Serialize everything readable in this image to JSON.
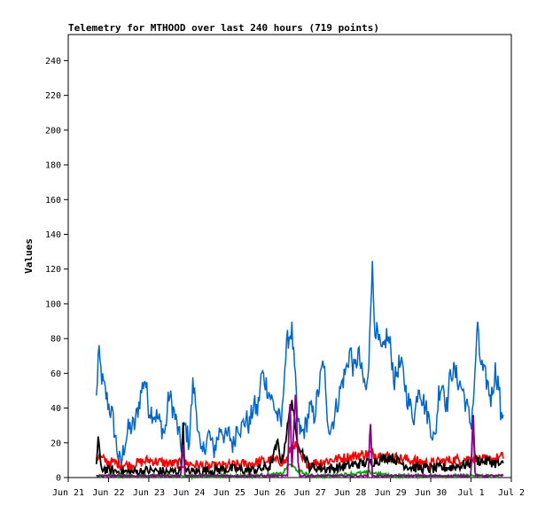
{
  "chart_data": {
    "type": "line",
    "title": "Telemetry for MTHOOD over last 240 hours (719 points)",
    "xlabel": "",
    "ylabel": "Values",
    "x_tick_labels": [
      "Jun 21",
      "Jun 22",
      "Jun 23",
      "Jun 24",
      "Jun 25",
      "Jun 26",
      "Jun 27",
      "Jun 28",
      "Jun 29",
      "Jun 30",
      "Jul 1",
      "Jul 2"
    ],
    "x_range_days": [
      0,
      11
    ],
    "ylim": [
      0,
      255
    ],
    "y_ticks": [
      0,
      20,
      40,
      60,
      80,
      100,
      120,
      140,
      160,
      180,
      200,
      220,
      240
    ],
    "grid": false,
    "legend": "none",
    "series": [
      {
        "color": "#0066cc",
        "points": [
          [
            0.7,
            45
          ],
          [
            0.75,
            72
          ],
          [
            0.85,
            55
          ],
          [
            1.0,
            42
          ],
          [
            1.1,
            35
          ],
          [
            1.2,
            18
          ],
          [
            1.3,
            6
          ],
          [
            1.4,
            20
          ],
          [
            1.5,
            28
          ],
          [
            1.65,
            30
          ],
          [
            1.8,
            48
          ],
          [
            1.9,
            58
          ],
          [
            2.0,
            40
          ],
          [
            2.2,
            35
          ],
          [
            2.4,
            25
          ],
          [
            2.5,
            48
          ],
          [
            2.6,
            40
          ],
          [
            2.7,
            30
          ],
          [
            2.8,
            18
          ],
          [
            2.9,
            30
          ],
          [
            3.0,
            20
          ],
          [
            3.1,
            55
          ],
          [
            3.2,
            35
          ],
          [
            3.3,
            10
          ],
          [
            3.4,
            20
          ],
          [
            3.5,
            25
          ],
          [
            3.6,
            15
          ],
          [
            3.7,
            22
          ],
          [
            3.8,
            30
          ],
          [
            3.9,
            22
          ],
          [
            4.0,
            25
          ],
          [
            4.1,
            18
          ],
          [
            4.2,
            32
          ],
          [
            4.3,
            28
          ],
          [
            4.4,
            34
          ],
          [
            4.5,
            30
          ],
          [
            4.6,
            42
          ],
          [
            4.7,
            38
          ],
          [
            4.8,
            60
          ],
          [
            4.9,
            55
          ],
          [
            5.0,
            48
          ],
          [
            5.1,
            42
          ],
          [
            5.2,
            35
          ],
          [
            5.3,
            30
          ],
          [
            5.35,
            58
          ],
          [
            5.45,
            80
          ],
          [
            5.55,
            85
          ],
          [
            5.65,
            50
          ],
          [
            5.7,
            30
          ],
          [
            5.8,
            25
          ],
          [
            5.9,
            30
          ],
          [
            6.0,
            40
          ],
          [
            6.1,
            35
          ],
          [
            6.2,
            48
          ],
          [
            6.3,
            62
          ],
          [
            6.35,
            68
          ],
          [
            6.4,
            40
          ],
          [
            6.5,
            28
          ],
          [
            6.6,
            35
          ],
          [
            6.7,
            45
          ],
          [
            6.8,
            55
          ],
          [
            6.9,
            62
          ],
          [
            7.0,
            74
          ],
          [
            7.1,
            60
          ],
          [
            7.2,
            72
          ],
          [
            7.3,
            58
          ],
          [
            7.4,
            50
          ],
          [
            7.45,
            56
          ],
          [
            7.5,
            100
          ],
          [
            7.55,
            120
          ],
          [
            7.6,
            90
          ],
          [
            7.7,
            78
          ],
          [
            7.8,
            70
          ],
          [
            7.9,
            82
          ],
          [
            8.0,
            75
          ],
          [
            8.1,
            55
          ],
          [
            8.2,
            65
          ],
          [
            8.3,
            62
          ],
          [
            8.4,
            48
          ],
          [
            8.5,
            40
          ],
          [
            8.6,
            35
          ],
          [
            8.7,
            55
          ],
          [
            8.8,
            45
          ],
          [
            8.9,
            38
          ],
          [
            9.0,
            30
          ],
          [
            9.1,
            20
          ],
          [
            9.2,
            50
          ],
          [
            9.3,
            55
          ],
          [
            9.4,
            40
          ],
          [
            9.5,
            62
          ],
          [
            9.6,
            60
          ],
          [
            9.7,
            55
          ],
          [
            9.8,
            50
          ],
          [
            9.9,
            40
          ],
          [
            10.0,
            30
          ],
          [
            10.1,
            58
          ],
          [
            10.15,
            90
          ],
          [
            10.2,
            72
          ],
          [
            10.3,
            60
          ],
          [
            10.4,
            55
          ],
          [
            10.5,
            45
          ],
          [
            10.6,
            62
          ],
          [
            10.7,
            52
          ],
          [
            10.75,
            30
          ],
          [
            10.8,
            40
          ]
        ],
        "noise": 7
      },
      {
        "color": "#ff0000",
        "points": [
          [
            0.7,
            12
          ],
          [
            1.0,
            9
          ],
          [
            1.5,
            7
          ],
          [
            2.0,
            10
          ],
          [
            2.5,
            8
          ],
          [
            3.0,
            8
          ],
          [
            3.5,
            6
          ],
          [
            4.0,
            7
          ],
          [
            4.5,
            8
          ],
          [
            5.0,
            10
          ],
          [
            5.4,
            9
          ],
          [
            5.6,
            20
          ],
          [
            5.8,
            10
          ],
          [
            6.0,
            8
          ],
          [
            6.5,
            10
          ],
          [
            7.0,
            12
          ],
          [
            7.5,
            14
          ],
          [
            8.0,
            12
          ],
          [
            8.5,
            10
          ],
          [
            9.0,
            8
          ],
          [
            9.5,
            10
          ],
          [
            10.0,
            11
          ],
          [
            10.4,
            10
          ],
          [
            10.8,
            12
          ]
        ],
        "noise": 3
      },
      {
        "color": "#000000",
        "points": [
          [
            0.7,
            8
          ],
          [
            0.75,
            25
          ],
          [
            0.8,
            6
          ],
          [
            1.0,
            4
          ],
          [
            1.5,
            3
          ],
          [
            2.0,
            4
          ],
          [
            2.5,
            3
          ],
          [
            2.8,
            4
          ],
          [
            2.85,
            30
          ],
          [
            2.9,
            3
          ],
          [
            3.5,
            4
          ],
          [
            4.0,
            5
          ],
          [
            4.5,
            4
          ],
          [
            5.0,
            6
          ],
          [
            5.2,
            20
          ],
          [
            5.3,
            8
          ],
          [
            5.45,
            30
          ],
          [
            5.55,
            45
          ],
          [
            5.65,
            25
          ],
          [
            5.8,
            15
          ],
          [
            6.0,
            6
          ],
          [
            6.5,
            5
          ],
          [
            7.0,
            7
          ],
          [
            7.5,
            9
          ],
          [
            7.7,
            10
          ],
          [
            8.0,
            12
          ],
          [
            8.3,
            8
          ],
          [
            8.5,
            6
          ],
          [
            9.0,
            5
          ],
          [
            9.5,
            6
          ],
          [
            10.0,
            8
          ],
          [
            10.05,
            35
          ],
          [
            10.1,
            10
          ],
          [
            10.5,
            9
          ],
          [
            10.8,
            7
          ]
        ],
        "noise": 3
      },
      {
        "color": "#00aa00",
        "points": [
          [
            0.7,
            1
          ],
          [
            1.5,
            1
          ],
          [
            2.5,
            1
          ],
          [
            3.5,
            1
          ],
          [
            4.5,
            1
          ],
          [
            5.3,
            2
          ],
          [
            5.5,
            8
          ],
          [
            5.7,
            4
          ],
          [
            6.0,
            1
          ],
          [
            6.5,
            1
          ],
          [
            7.0,
            2
          ],
          [
            7.5,
            3
          ],
          [
            8.0,
            1
          ],
          [
            9.0,
            1
          ],
          [
            10.0,
            1
          ],
          [
            10.8,
            1
          ]
        ],
        "noise": 1
      },
      {
        "color": "#880088",
        "points": [
          [
            0.7,
            1
          ],
          [
            2.8,
            1
          ],
          [
            2.85,
            20
          ],
          [
            2.9,
            1
          ],
          [
            5.45,
            1
          ],
          [
            5.5,
            50
          ],
          [
            5.55,
            5
          ],
          [
            5.65,
            52
          ],
          [
            5.7,
            10
          ],
          [
            5.75,
            1
          ],
          [
            6.8,
            1
          ],
          [
            7.45,
            1
          ],
          [
            7.5,
            35
          ],
          [
            7.55,
            1
          ],
          [
            10.0,
            1
          ],
          [
            10.05,
            38
          ],
          [
            10.1,
            1
          ],
          [
            10.8,
            1
          ]
        ],
        "noise": 0.5
      }
    ]
  }
}
